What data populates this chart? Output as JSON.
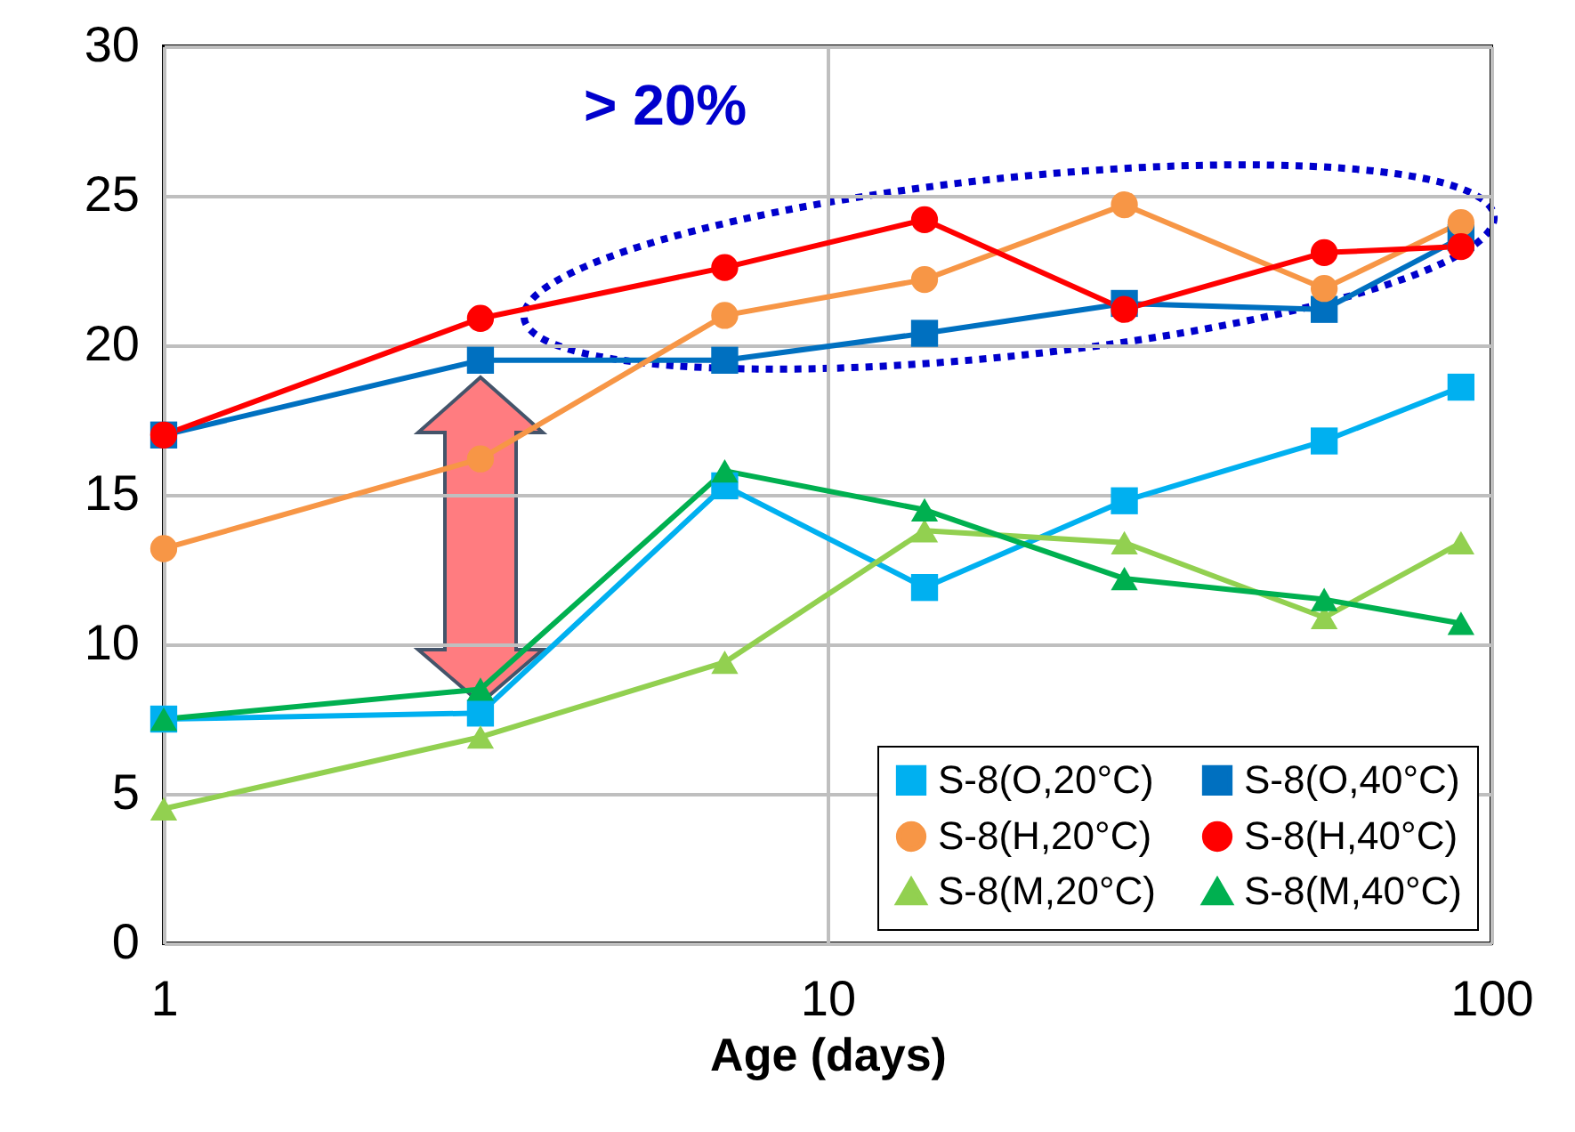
{
  "chart_data": {
    "type": "line",
    "xlabel": "Age (days)",
    "x": [
      1,
      3,
      7,
      14,
      28,
      56,
      90
    ],
    "log": "x",
    "xlim": [
      1,
      100
    ],
    "xticks": [
      1,
      10,
      100
    ],
    "ylim": [
      0,
      30
    ],
    "yticks": [
      0,
      5,
      10,
      15,
      20,
      25,
      30
    ],
    "grid": true,
    "legend": "bottom right",
    "annotations": [
      "> 20%"
    ],
    "series": [
      {
        "name": "S-8(O,20°C)",
        "color": "#00b0f0",
        "marker": "square",
        "values": [
          7.5,
          7.7,
          15.3,
          11.9,
          14.8,
          16.8,
          18.6
        ]
      },
      {
        "name": "S-8(O,40°C)",
        "color": "#0070c0",
        "marker": "square",
        "values": [
          17.0,
          19.5,
          19.5,
          20.4,
          21.4,
          21.2,
          23.6
        ]
      },
      {
        "name": "S-8(H,20°C)",
        "color": "#f79646",
        "marker": "circle",
        "values": [
          13.2,
          16.2,
          21.0,
          22.2,
          24.7,
          21.9,
          24.1
        ]
      },
      {
        "name": "S-8(H,40°C)",
        "color": "#ff0000",
        "marker": "circle",
        "values": [
          17.0,
          20.9,
          22.6,
          24.2,
          21.2,
          23.1,
          23.3
        ]
      },
      {
        "name": "S-8(M,20°C)",
        "color": "#92d050",
        "marker": "triangle",
        "values": [
          4.5,
          6.9,
          9.4,
          13.8,
          13.4,
          10.9,
          13.4
        ]
      },
      {
        "name": "S-8(M,40°C)",
        "color": "#00b050",
        "marker": "triangle",
        "values": [
          7.5,
          8.5,
          15.8,
          14.5,
          12.2,
          11.5,
          10.7
        ]
      }
    ]
  }
}
